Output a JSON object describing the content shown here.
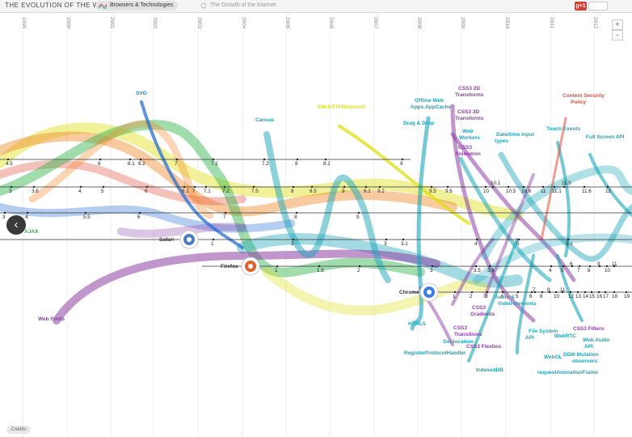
{
  "header": {
    "title": "THE EVOLUTION OF THE WEB",
    "tab_active": "Browsers & Technologies",
    "tab_other": "The Growth of the Internet",
    "gplus": "g+1"
  },
  "controls": {
    "zoom_in": "+",
    "zoom_out": "-",
    "back": "‹",
    "credits": "Credits"
  },
  "years": [
    "1990",
    "2000",
    "2001",
    "2002",
    "2003",
    "2004",
    "2005",
    "2006",
    "2007",
    "2008",
    "2009",
    "2010",
    "2011",
    "2012"
  ],
  "browsers": [
    {
      "name": "Safari",
      "label": "Safari"
    },
    {
      "name": "Firefox",
      "label": "Firefox"
    },
    {
      "name": "Chrome",
      "label": "Chrome"
    }
  ],
  "technologies": [
    {
      "label": "SVG",
      "color": "#0e86c6"
    },
    {
      "label": "Canvas",
      "color": "#1ba5b8"
    },
    {
      "label": "XMLHTTPRequest2",
      "color": "#e0e020"
    },
    {
      "label": "Offline Web Apps.AppCache",
      "color": "#1ba5b8"
    },
    {
      "label": "CSS3 2D Transforms",
      "color": "#8c3fa4"
    },
    {
      "label": "Drag & Drop",
      "color": "#1ba5b8"
    },
    {
      "label": "CSS3 3D Transforms",
      "color": "#8c3fa4"
    },
    {
      "label": "CSS3 Animation",
      "color": "#8c3fa4"
    },
    {
      "label": "Web Workers",
      "color": "#1ba5b8"
    },
    {
      "label": "Date/time input types",
      "color": "#1ba5b8"
    },
    {
      "label": "Touch Events",
      "color": "#1ba5b8"
    },
    {
      "label": "Content Security Policy",
      "color": "#e34c3c"
    },
    {
      "label": "Full Screen API",
      "color": "#1ba5b8"
    },
    {
      "label": "Web Fonts",
      "color": "#8c3fa4"
    },
    {
      "label": "AJAX",
      "color": "#2fb24a"
    },
    {
      "label": "HTML5",
      "color": "#1ba5b8"
    },
    {
      "label": "Geolocation",
      "color": "#1ba5b8"
    },
    {
      "label": "RegisterProtocolHandler",
      "color": "#1ba5b8"
    },
    {
      "label": "CSS3 Gradients",
      "color": "#8c3fa4"
    },
    {
      "label": "CSS3 Transitions",
      "color": "#8c3fa4"
    },
    {
      "label": "CSS3 Flexbox",
      "color": "#8c3fa4"
    },
    {
      "label": "Audio & Video elements",
      "color": "#1ba5b8"
    },
    {
      "label": "IndexedDB",
      "color": "#1ba5b8"
    },
    {
      "label": "File System API",
      "color": "#1ba5b8"
    },
    {
      "label": "WebGL",
      "color": "#1ba5b8"
    },
    {
      "label": "WebRTC",
      "color": "#1ba5b8"
    },
    {
      "label": "CSS3 Filters",
      "color": "#8c3fa4"
    },
    {
      "label": "DDM Mutation observers",
      "color": "#1ba5b8"
    },
    {
      "label": "Web Audio API",
      "color": "#1ba5b8"
    },
    {
      "label": "requestAnimationFrame",
      "color": "#1ba5b8"
    }
  ],
  "versions": {
    "row1": [
      "4.5",
      "6",
      "6.1",
      "6.2",
      "7",
      "7.1",
      "7.2",
      "8",
      "8.1",
      "9"
    ],
    "row2": [
      "3",
      "3.6",
      "4",
      "5",
      "6",
      "6.1",
      "7",
      "7.1",
      "7.2",
      "7.5",
      "8",
      "8.5",
      "9",
      "9.1",
      "9.2",
      "9.5",
      "9.6",
      "10",
      "10.1",
      "10.5",
      "10.6",
      "11",
      "11.1",
      "11.5",
      "11.6",
      "12"
    ],
    "row3": [
      "3",
      "4",
      "5.5",
      "6",
      "7",
      "8",
      "9"
    ],
    "row4": [
      "1",
      "2",
      "3",
      "3.1",
      "4",
      "5",
      "5.1"
    ],
    "row5": [
      "1",
      "1.5",
      "2",
      "3",
      "3.5",
      "3.6",
      "4",
      "5",
      "6",
      "7",
      "8",
      "9",
      "10",
      "11",
      "12",
      "13"
    ],
    "row6": [
      "1",
      "2",
      "3",
      "4",
      "5",
      "6",
      "7",
      "8",
      "9",
      "10",
      "11",
      "12",
      "13",
      "14",
      "15",
      "16",
      "17",
      "18",
      "19"
    ]
  },
  "colors": {
    "purple": "#8c3fa4",
    "teal": "#1ba5b8",
    "green": "#2fb24a",
    "yellow": "#e0e020",
    "orange": "#f08a2a",
    "blue": "#2a6fd0",
    "red": "#e34c3c"
  }
}
